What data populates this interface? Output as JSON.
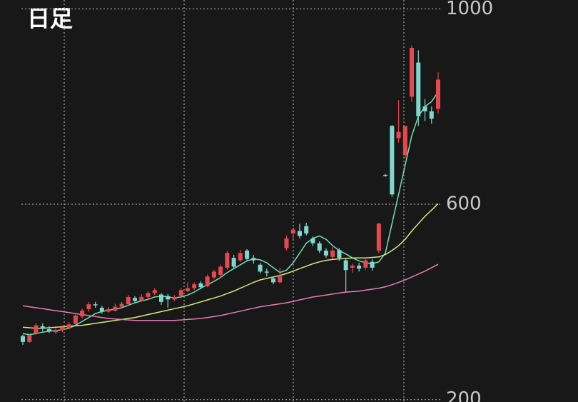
{
  "chart_data": {
    "type": "candlestick",
    "title": "日足",
    "ylim": [
      195,
      1018
    ],
    "yticks": [
      200,
      600,
      1000
    ],
    "grid": true,
    "up_color": "#e8474f",
    "down_color": "#7fd8cf",
    "open": [
      330,
      318,
      335,
      350,
      344,
      338,
      342,
      346,
      355,
      370,
      385,
      395,
      388,
      380,
      382,
      390,
      395,
      408,
      402,
      410,
      418,
      415,
      412,
      405,
      412,
      422,
      428,
      438,
      432,
      450,
      455,
      470,
      490,
      485,
      505,
      490,
      476,
      462,
      448,
      440,
      510,
      540,
      545,
      555,
      530,
      520,
      505,
      492,
      506,
      485,
      470,
      474,
      470,
      482,
      505,
      660,
      760,
      735,
      700,
      820,
      890,
      800,
      790,
      795
    ],
    "high": [
      333,
      335,
      356,
      356,
      350,
      346,
      352,
      358,
      376,
      386,
      400,
      400,
      392,
      390,
      396,
      400,
      414,
      412,
      416,
      422,
      428,
      418,
      416,
      414,
      428,
      440,
      440,
      442,
      456,
      466,
      476,
      504,
      496,
      506,
      508,
      496,
      480,
      468,
      452,
      470,
      536,
      552,
      560,
      562,
      534,
      524,
      510,
      512,
      510,
      488,
      478,
      480,
      490,
      488,
      562,
      662,
      762,
      813,
      760,
      925,
      915,
      815,
      800,
      870
    ],
    "low": [
      312,
      316,
      333,
      340,
      336,
      334,
      338,
      344,
      352,
      366,
      380,
      388,
      376,
      378,
      380,
      386,
      392,
      398,
      400,
      405,
      414,
      394,
      388,
      402,
      410,
      420,
      424,
      426,
      430,
      446,
      450,
      466,
      468,
      482,
      484,
      478,
      458,
      452,
      436,
      438,
      505,
      528,
      530,
      536,
      514,
      500,
      490,
      488,
      484,
      420,
      460,
      462,
      466,
      464,
      500,
      656,
      615,
      726,
      695,
      810,
      760,
      770,
      765,
      785
    ],
    "close": [
      318,
      332,
      352,
      345,
      340,
      343,
      348,
      354,
      372,
      382,
      395,
      393,
      380,
      385,
      390,
      396,
      410,
      402,
      410,
      418,
      424,
      400,
      405,
      410,
      424,
      428,
      436,
      430,
      452,
      462,
      472,
      500,
      472,
      500,
      488,
      485,
      462,
      460,
      440,
      452,
      530,
      548,
      535,
      540,
      520,
      505,
      495,
      505,
      490,
      465,
      474,
      468,
      485,
      470,
      560,
      658,
      620,
      748,
      760,
      920,
      780,
      790,
      775,
      855
    ],
    "series": [
      {
        "color": "#6fe0b0",
        "values": [
          335,
          333,
          335,
          338,
          340,
          341,
          343,
          346,
          352,
          360,
          368,
          376,
          380,
          383,
          385,
          388,
          393,
          398,
          402,
          405,
          410,
          412,
          410,
          408,
          410,
          414,
          420,
          428,
          435,
          442,
          450,
          460,
          468,
          476,
          484,
          488,
          486,
          480,
          470,
          460,
          465,
          480,
          500,
          520,
          530,
          535,
          528,
          515,
          505,
          498,
          490,
          484,
          480,
          478,
          482,
          500,
          560,
          620,
          680,
          740,
          780,
          800,
          810,
          830
        ]
      },
      {
        "color": "#d8e87a",
        "values": [
          348,
          347,
          346,
          346,
          347,
          348,
          349,
          350,
          351,
          352,
          354,
          356,
          358,
          360,
          362,
          364,
          366,
          368,
          371,
          374,
          377,
          380,
          383,
          386,
          389,
          392,
          396,
          400,
          404,
          408,
          412,
          417,
          422,
          428,
          434,
          440,
          445,
          448,
          451,
          454,
          458,
          463,
          468,
          473,
          478,
          482,
          485,
          487,
          488,
          489,
          490,
          490,
          490,
          491,
          492,
          497,
          505,
          515,
          528,
          545,
          560,
          575,
          588,
          601
        ]
      },
      {
        "color": "#e77ab8",
        "values": [
          392,
          390,
          388,
          386,
          384,
          382,
          380,
          378,
          376,
          374,
          372,
          370,
          368,
          366,
          365,
          364,
          363,
          362,
          362,
          362,
          362,
          362,
          362,
          362,
          363,
          364,
          365,
          366,
          368,
          370,
          372,
          375,
          378,
          381,
          384,
          387,
          390,
          392,
          394,
          396,
          398,
          401,
          404,
          407,
          410,
          412,
          414,
          416,
          418,
          420,
          421,
          422,
          424,
          426,
          428,
          431,
          435,
          440,
          445,
          451,
          457,
          463,
          470,
          477
        ]
      }
    ]
  }
}
